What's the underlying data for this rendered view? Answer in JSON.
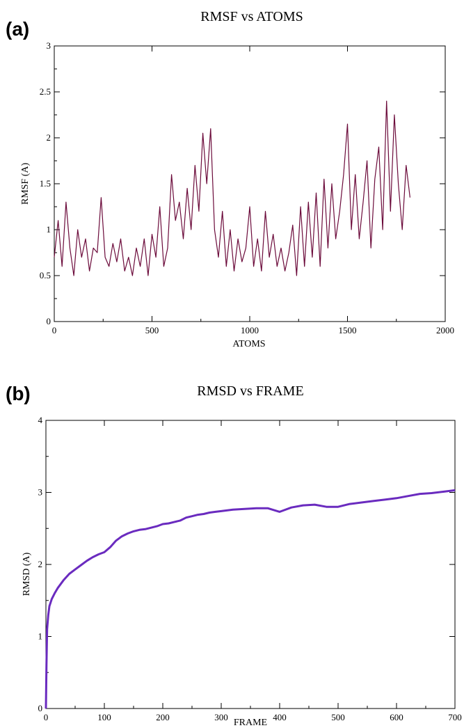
{
  "panels": {
    "a": {
      "label": "(a)"
    },
    "b": {
      "label": "(b)"
    }
  },
  "chart_data": [
    {
      "type": "line",
      "title": "RMSF vs ATOMS",
      "xlabel": "ATOMS",
      "ylabel": "RMSF (A)",
      "xlim": [
        0,
        2000
      ],
      "ylim": [
        0,
        3
      ],
      "xticks": [
        "0",
        "500",
        "1000",
        "1500",
        "2000"
      ],
      "yticks": [
        "0",
        "0.5",
        "1",
        "1.5",
        "2",
        "2.5",
        "3"
      ],
      "grid": false,
      "color": "#6b0a3a",
      "series": [
        {
          "x": [
            0,
            20,
            40,
            60,
            80,
            100,
            120,
            140,
            160,
            180,
            200,
            220,
            240,
            260,
            280,
            300,
            320,
            340,
            360,
            380,
            400,
            420,
            440,
            460,
            480,
            500,
            520,
            540,
            560,
            580,
            600,
            620,
            640,
            660,
            680,
            700,
            720,
            740,
            760,
            780,
            800,
            820,
            840,
            860,
            880,
            900,
            920,
            940,
            960,
            980,
            1000,
            1020,
            1040,
            1060,
            1080,
            1100,
            1120,
            1140,
            1160,
            1180,
            1200,
            1220,
            1240,
            1260,
            1280,
            1300,
            1320,
            1340,
            1360,
            1380,
            1400,
            1420,
            1440,
            1460,
            1480,
            1500,
            1520,
            1540,
            1560,
            1580,
            1600,
            1620,
            1640,
            1660,
            1680,
            1700,
            1720,
            1740,
            1760,
            1780,
            1800,
            1820
          ],
          "y": [
            0.7,
            1.1,
            0.6,
            1.3,
            0.8,
            0.5,
            1.0,
            0.7,
            0.9,
            0.55,
            0.8,
            0.75,
            1.35,
            0.7,
            0.6,
            0.85,
            0.65,
            0.9,
            0.55,
            0.7,
            0.5,
            0.8,
            0.6,
            0.9,
            0.5,
            0.95,
            0.7,
            1.25,
            0.6,
            0.8,
            1.6,
            1.1,
            1.3,
            0.9,
            1.45,
            1.0,
            1.7,
            1.2,
            2.05,
            1.5,
            2.1,
            1.0,
            0.7,
            1.2,
            0.6,
            1.0,
            0.55,
            0.9,
            0.65,
            0.8,
            1.25,
            0.6,
            0.9,
            0.55,
            1.2,
            0.7,
            0.95,
            0.6,
            0.8,
            0.55,
            0.75,
            1.05,
            0.5,
            1.25,
            0.6,
            1.3,
            0.7,
            1.4,
            0.6,
            1.55,
            0.8,
            1.5,
            0.9,
            1.2,
            1.6,
            2.15,
            1.0,
            1.6,
            0.9,
            1.3,
            1.75,
            0.8,
            1.55,
            1.9,
            1.0,
            2.4,
            1.2,
            2.25,
            1.5,
            1.0,
            1.7,
            1.35
          ]
        }
      ]
    },
    {
      "type": "line",
      "title": "RMSD vs FRAME",
      "xlabel": "FRAME",
      "ylabel": "RMSD (A)",
      "xlim": [
        0,
        700
      ],
      "ylim": [
        0,
        4
      ],
      "xticks": [
        "0",
        "100",
        "200",
        "300",
        "400",
        "500",
        "600",
        "700"
      ],
      "yticks": [
        "0",
        "1",
        "2",
        "3",
        "4"
      ],
      "grid": false,
      "color": "#6a2bbf",
      "series": [
        {
          "x": [
            0,
            1,
            2,
            4,
            6,
            10,
            15,
            20,
            30,
            40,
            50,
            60,
            70,
            80,
            90,
            100,
            110,
            120,
            130,
            140,
            150,
            160,
            170,
            180,
            190,
            200,
            210,
            220,
            230,
            240,
            250,
            260,
            270,
            280,
            290,
            300,
            320,
            340,
            360,
            380,
            400,
            420,
            440,
            460,
            480,
            500,
            520,
            540,
            560,
            580,
            600,
            620,
            640,
            660,
            680,
            700
          ],
          "y": [
            0.0,
            0.6,
            1.1,
            1.3,
            1.42,
            1.52,
            1.6,
            1.67,
            1.78,
            1.87,
            1.93,
            1.99,
            2.05,
            2.1,
            2.14,
            2.17,
            2.24,
            2.33,
            2.39,
            2.43,
            2.46,
            2.48,
            2.49,
            2.51,
            2.53,
            2.56,
            2.57,
            2.59,
            2.61,
            2.65,
            2.67,
            2.69,
            2.7,
            2.72,
            2.73,
            2.74,
            2.76,
            2.77,
            2.78,
            2.78,
            2.73,
            2.79,
            2.82,
            2.83,
            2.8,
            2.8,
            2.84,
            2.86,
            2.88,
            2.9,
            2.92,
            2.95,
            2.98,
            2.99,
            3.01,
            3.03
          ]
        }
      ]
    }
  ]
}
